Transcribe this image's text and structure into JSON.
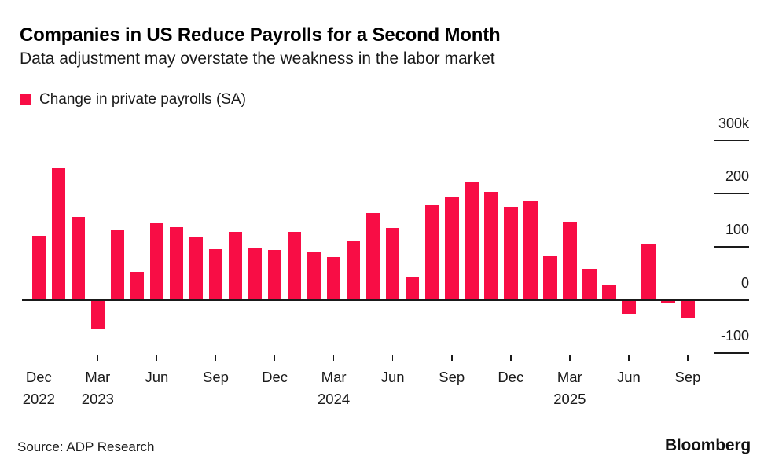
{
  "header": {
    "title": "Companies in US Reduce Payrolls for a Second Month",
    "subtitle": "Data adjustment may overstate the weakness in the labor market"
  },
  "legend": {
    "label": "Change in private payrolls (SA)",
    "swatch_color": "#f80d45"
  },
  "footer": {
    "source": "Source: ADP Research",
    "brand": "Bloomberg"
  },
  "colors": {
    "bar": "#f80d45",
    "axis": "#1a1a1a",
    "background": "#ffffff"
  },
  "chart_data": {
    "type": "bar",
    "title": "Companies in US Reduce Payrolls for a Second Month",
    "subtitle": "Data adjustment may overstate the weakness in the labor market",
    "series_name": "Change in private payrolls (SA)",
    "unit": "thousands of jobs",
    "grid": false,
    "legend_position": "top-left",
    "ylim": [
      -130,
      350
    ],
    "x": [
      "Dec 2022",
      "Jan 2023",
      "Feb 2023",
      "Mar 2023",
      "Apr 2023",
      "May 2023",
      "Jun 2023",
      "Jul 2023",
      "Aug 2023",
      "Sep 2023",
      "Oct 2023",
      "Nov 2023",
      "Dec 2023",
      "Jan 2024",
      "Feb 2024",
      "Mar 2024",
      "Apr 2024",
      "May 2024",
      "Jun 2024",
      "Jul 2024",
      "Aug 2024",
      "Sep 2024",
      "Oct 2024",
      "Nov 2024",
      "Dec 2024",
      "Jan 2025",
      "Feb 2025",
      "Mar 2025",
      "Apr 2025",
      "May 2025",
      "Jun 2025",
      "Jul 2025",
      "Aug 2025",
      "Sep 2025"
    ],
    "values": [
      120,
      247,
      156,
      -54,
      131,
      52,
      144,
      137,
      117,
      95,
      128,
      99,
      94,
      128,
      90,
      81,
      112,
      163,
      136,
      42,
      179,
      195,
      221,
      203,
      176,
      186,
      83,
      147,
      58,
      28,
      -24,
      104,
      -3,
      -32
    ],
    "yticks": [
      {
        "label": "300k",
        "value": 300
      },
      {
        "label": "200",
        "value": 200
      },
      {
        "label": "100",
        "value": 100
      },
      {
        "label": "0",
        "value": 0
      },
      {
        "label": "-100",
        "value": -100
      }
    ],
    "xticks": [
      {
        "index": 0,
        "label": "Dec",
        "year": "2022"
      },
      {
        "index": 3,
        "label": "Mar",
        "year": "2023"
      },
      {
        "index": 6,
        "label": "Jun",
        "year": ""
      },
      {
        "index": 9,
        "label": "Sep",
        "year": ""
      },
      {
        "index": 12,
        "label": "Dec",
        "year": ""
      },
      {
        "index": 15,
        "label": "Mar",
        "year": "2024"
      },
      {
        "index": 18,
        "label": "Jun",
        "year": ""
      },
      {
        "index": 21,
        "label": "Sep",
        "year": ""
      },
      {
        "index": 24,
        "label": "Dec",
        "year": ""
      },
      {
        "index": 27,
        "label": "Mar",
        "year": "2025"
      },
      {
        "index": 30,
        "label": "Jun",
        "year": ""
      },
      {
        "index": 33,
        "label": "Sep",
        "year": ""
      }
    ]
  }
}
